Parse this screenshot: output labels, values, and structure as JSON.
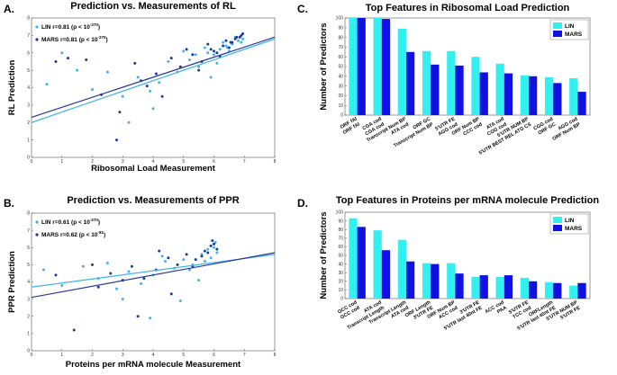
{
  "chart_data": [
    {
      "type": "scatter",
      "panel": "A.",
      "title": "Prediction vs. Measurements of RL",
      "xlabel": "Ribosomal Load Measurement",
      "ylabel": "RL Prediction",
      "xlim": [
        0,
        8
      ],
      "xticks": [
        0,
        1,
        2,
        3,
        4,
        5,
        6,
        7,
        8
      ],
      "ylim": [
        0,
        8
      ],
      "yticks": [
        0,
        1,
        2,
        3,
        4,
        5,
        6,
        7,
        8
      ],
      "series": [
        {
          "name": "LIN r=0.81 (p < 10",
          "name_sup": "-270",
          "name_end": ")",
          "color": "#3fb3ef",
          "x": [
            5.2,
            5.5,
            5.8,
            6.0,
            6.2,
            6.4,
            6.5,
            6.6,
            6.8,
            6.9,
            4.8,
            4.5,
            4.2,
            3.9,
            3.5,
            3.0,
            2.5,
            2.0,
            1.5,
            1.0,
            0.5,
            5.0,
            5.7,
            6.1,
            6.3,
            6.7,
            4.0,
            3.2,
            5.9,
            6.95,
            5.4,
            6.45
          ],
          "values": [
            5.6,
            5.2,
            6.0,
            5.9,
            6.2,
            6.4,
            6.1,
            6.5,
            6.7,
            6.6,
            4.9,
            5.5,
            4.3,
            3.8,
            4.6,
            3.5,
            4.9,
            3.9,
            5.0,
            6.0,
            4.2,
            6.1,
            6.3,
            5.4,
            6.6,
            6.9,
            2.8,
            2.0,
            4.6,
            6.8,
            5.9,
            6.3
          ]
        },
        {
          "name": "MARS r=0.81 (p < 10",
          "name_sup": "-270",
          "name_end": ")",
          "color": "#1b3a9c",
          "x": [
            5.3,
            5.6,
            5.9,
            6.1,
            6.3,
            6.5,
            6.6,
            6.7,
            6.85,
            6.9,
            4.9,
            4.6,
            4.1,
            3.8,
            3.4,
            2.8,
            2.3,
            1.8,
            1.2,
            0.8,
            5.1,
            5.8,
            6.2,
            6.4,
            6.75,
            4.3,
            3.6,
            2.9,
            6.0,
            6.55,
            5.5,
            6.95
          ],
          "values": [
            5.9,
            5.5,
            6.2,
            6.0,
            6.4,
            6.3,
            6.6,
            6.8,
            6.9,
            7.0,
            5.2,
            5.7,
            4.8,
            4.1,
            5.4,
            1.0,
            3.6,
            5.6,
            5.7,
            5.5,
            6.2,
            6.5,
            5.8,
            6.7,
            6.9,
            3.5,
            4.4,
            2.6,
            6.1,
            6.6,
            5.0,
            7.1
          ]
        },
        {
          "type": "line",
          "color": "#3fb3ef",
          "x": [
            0,
            8
          ],
          "values": [
            2.0,
            6.8
          ]
        },
        {
          "type": "line",
          "color": "#2a3a9a",
          "x": [
            0,
            8
          ],
          "values": [
            2.3,
            6.9
          ]
        }
      ]
    },
    {
      "type": "scatter",
      "panel": "B.",
      "title": "Prediction vs. Measurements of PPR",
      "xlabel": "Proteins per mRNA molecule Measurement",
      "ylabel": "PPR Prediction",
      "xlim": [
        0,
        8
      ],
      "xticks": [
        0,
        1,
        2,
        3,
        4,
        5,
        6,
        7,
        8
      ],
      "ylim": [
        0,
        8
      ],
      "yticks": [
        0,
        1,
        2,
        3,
        4,
        5,
        6,
        7,
        8
      ],
      "series": [
        {
          "name": "LIN r=0.61 (p < 10",
          "name_sup": "-270",
          "name_end": ")",
          "color": "#3fb3ef",
          "x": [
            5.0,
            5.3,
            5.6,
            5.8,
            6.0,
            6.1,
            4.7,
            4.4,
            4.0,
            3.6,
            3.2,
            2.8,
            2.2,
            1.7,
            1.0,
            0.4,
            5.5,
            5.9,
            6.05,
            4.9,
            3.9,
            3.0,
            4.3,
            5.2,
            5.7,
            2.5
          ],
          "values": [
            5.3,
            5.0,
            5.6,
            5.9,
            6.0,
            5.7,
            4.8,
            5.2,
            4.4,
            3.9,
            4.6,
            3.6,
            4.2,
            4.9,
            3.8,
            4.7,
            4.1,
            5.4,
            6.3,
            2.9,
            1.9,
            3.0,
            5.5,
            4.7,
            5.2,
            5.1
          ]
        },
        {
          "name": "MARS r=0.62 (p < 10",
          "name_sup": "-81",
          "name_end": ")",
          "color": "#1b3a9c",
          "x": [
            5.1,
            5.4,
            5.7,
            5.9,
            6.0,
            6.1,
            4.8,
            4.5,
            4.1,
            3.7,
            3.3,
            2.6,
            2.0,
            1.4,
            0.8,
            5.6,
            5.95,
            4.6,
            3.5,
            4.2,
            5.3,
            5.8,
            2.2,
            3.0
          ],
          "values": [
            5.6,
            5.3,
            5.8,
            6.1,
            6.2,
            5.9,
            5.0,
            5.4,
            4.7,
            4.2,
            4.9,
            4.5,
            5.0,
            1.2,
            4.4,
            5.5,
            6.4,
            3.3,
            2.0,
            5.8,
            4.9,
            5.7,
            3.7,
            4.1
          ]
        },
        {
          "type": "line",
          "color": "#3fb3ef",
          "x": [
            0,
            8
          ],
          "values": [
            3.7,
            5.6
          ]
        },
        {
          "type": "line",
          "color": "#2a3a9a",
          "x": [
            0,
            8
          ],
          "values": [
            3.1,
            5.7
          ]
        }
      ]
    },
    {
      "type": "bar",
      "panel": "C.",
      "title": "Top Features in Ribosomal Load Prediction",
      "ylabel": "Number of Predictors",
      "categories": [
        "ORF fAI",
        "CGA cod",
        "Transcript Num BP",
        "ORF GC",
        "5'UTR FE",
        "ORF Num BP",
        "ATA cod",
        "5'UTR NUM BP",
        "CGG cod",
        "AGG cod"
      ],
      "categories_2": [
        "ORF fAI",
        "CGA cod",
        "ATA cod",
        "Transcript Num BP",
        "AGG cod",
        "CCC cod",
        "CGG cod",
        "5'UTR BEST REL ATG CS",
        "ORF GC",
        "ORF Num BP"
      ],
      "ylim": [
        0,
        100
      ],
      "yticks": [
        0,
        10,
        20,
        30,
        40,
        50,
        60,
        70,
        80,
        90,
        100
      ],
      "legend": "upper right",
      "series": [
        {
          "name": "LIN",
          "color": "#33f0f0",
          "values": [
            100,
            100,
            89,
            66,
            66,
            60,
            53,
            41,
            39,
            38
          ]
        },
        {
          "name": "MARS",
          "color": "#1010e0",
          "values": [
            100,
            99,
            65,
            52,
            51,
            44,
            43,
            40,
            33,
            24
          ]
        }
      ]
    },
    {
      "type": "bar",
      "panel": "D.",
      "title": "Top Features in Proteins per mRNA molecule Prediction",
      "ylabel": "Number of Predictors",
      "categories": [
        "GCC cod",
        "ATA cod",
        "Transcript Length",
        "ORF Length",
        "ORF Num BP",
        "3'UTR FE",
        "ACC cod",
        "5'UTR FE",
        "ORFLength",
        "5'UTR NUM BP"
      ],
      "categories_2": [
        "GCC cod",
        "Transcript Length",
        "ATA cod",
        "3'UTR FE",
        "ACC cod",
        "5'UTR last 40nt FE",
        "PAA",
        "TCC cod",
        "5'UTR last 40nt FE",
        "5'UTR FE"
      ],
      "ylim": [
        0,
        100
      ],
      "yticks": [
        0,
        10,
        20,
        30,
        40,
        50,
        60,
        70,
        80,
        90,
        100
      ],
      "legend": "upper right",
      "series": [
        {
          "name": "LIN",
          "color": "#33f0f0",
          "values": [
            93,
            79,
            68,
            41,
            41,
            25,
            25,
            24,
            19,
            15
          ]
        },
        {
          "name": "MARS",
          "color": "#1010e0",
          "values": [
            83,
            56,
            43,
            40,
            29,
            27,
            27,
            20,
            18,
            18
          ]
        }
      ]
    }
  ]
}
